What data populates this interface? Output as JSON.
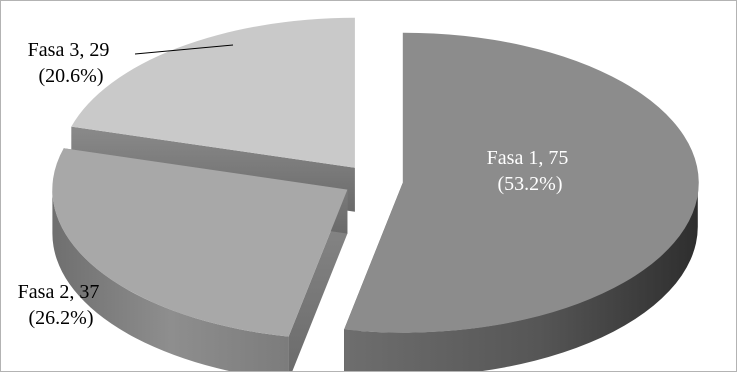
{
  "chart_data": {
    "type": "pie",
    "title": "",
    "style": "3d-exploded",
    "slices": [
      {
        "name": "Fasa 1",
        "value": 75,
        "percent": "53.2%",
        "label_line1": "Fasa 1, 75",
        "label_line2": "(53.2%)",
        "color": "#8c8c8c",
        "label_color": "#ffffff"
      },
      {
        "name": "Fasa 2",
        "value": 37,
        "percent": "26.2%",
        "label_line1": "Fasa 2, 37",
        "label_line2": "(26.2%)",
        "color": "#a8a8a8",
        "label_color": "#000000"
      },
      {
        "name": "Fasa 3",
        "value": 29,
        "percent": "20.6%",
        "label_line1": "Fasa 3, 29",
        "label_line2": "(20.6%)",
        "color": "#c9c9c9",
        "label_color": "#000000"
      }
    ]
  }
}
